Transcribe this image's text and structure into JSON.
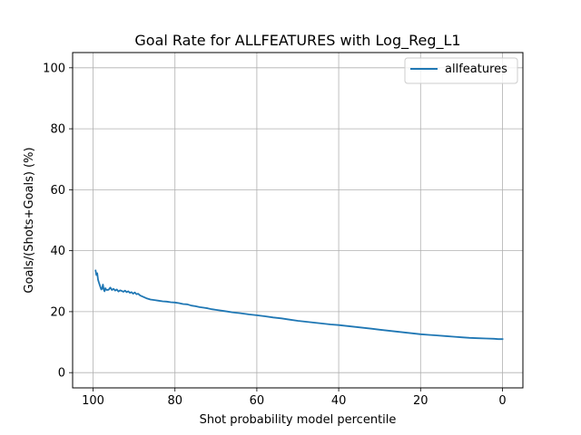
{
  "chart_data": {
    "type": "line",
    "title": "Goal Rate for ALLFEATURES with Log_Reg_L1",
    "xlabel": "Shot probability model percentile",
    "ylabel": "Goals/(Shots+Goals) (%)",
    "xlim": [
      105,
      -5
    ],
    "ylim": [
      -5,
      105
    ],
    "x_inverted": true,
    "x_ticks": [
      100,
      80,
      60,
      40,
      20,
      0
    ],
    "y_ticks": [
      0,
      20,
      40,
      60,
      80,
      100
    ],
    "grid": true,
    "legend_position": "top-right",
    "series": [
      {
        "name": "allfeatures",
        "color": "#1f77b4",
        "x": [
          99.4,
          99.2,
          99.0,
          98.8,
          98.6,
          98.4,
          98.2,
          98.0,
          97.8,
          97.6,
          97.4,
          97.2,
          97.0,
          96.8,
          96.6,
          96.2,
          95.8,
          95.4,
          95.0,
          94.6,
          94.2,
          93.8,
          93.4,
          93.0,
          92.6,
          92.2,
          91.8,
          91.4,
          91.0,
          90.6,
          90.2,
          89.8,
          89.4,
          89.0,
          88.5,
          88.0,
          87.0,
          86.0,
          85.0,
          84.0,
          83.0,
          82.0,
          81.0,
          80.0,
          79.0,
          78.0,
          77.0,
          76.0,
          75.0,
          74.0,
          73.0,
          72.0,
          71.0,
          70.0,
          68.0,
          66.0,
          64.0,
          62.0,
          60.0,
          58.0,
          56.0,
          54.0,
          52.0,
          50.0,
          48.0,
          46.0,
          44.0,
          42.0,
          40.0,
          38.0,
          36.0,
          34.0,
          32.0,
          30.0,
          28.0,
          26.0,
          24.0,
          22.0,
          20.0,
          18.0,
          16.0,
          14.0,
          12.0,
          10.0,
          8.0,
          6.0,
          4.0,
          2.0,
          1.0,
          0.0
        ],
        "values": [
          33.5,
          32.0,
          32.6,
          30.5,
          29.6,
          28.8,
          28.0,
          27.3,
          27.6,
          28.9,
          27.2,
          26.7,
          27.7,
          27.2,
          27.1,
          27.2,
          27.9,
          27.1,
          27.5,
          26.9,
          27.3,
          26.6,
          27.0,
          26.8,
          26.5,
          26.9,
          26.4,
          26.7,
          26.2,
          26.4,
          25.9,
          26.3,
          25.7,
          25.9,
          25.3,
          25.0,
          24.4,
          24.0,
          23.8,
          23.6,
          23.4,
          23.3,
          23.1,
          23.0,
          22.8,
          22.5,
          22.4,
          22.0,
          21.8,
          21.5,
          21.3,
          21.1,
          20.8,
          20.6,
          20.2,
          19.8,
          19.5,
          19.1,
          18.8,
          18.5,
          18.1,
          17.8,
          17.4,
          17.0,
          16.7,
          16.4,
          16.1,
          15.8,
          15.6,
          15.3,
          15.0,
          14.7,
          14.4,
          14.1,
          13.8,
          13.5,
          13.2,
          12.9,
          12.6,
          12.4,
          12.2,
          12.0,
          11.8,
          11.6,
          11.4,
          11.3,
          11.2,
          11.1,
          11.0,
          11.0
        ]
      }
    ]
  }
}
